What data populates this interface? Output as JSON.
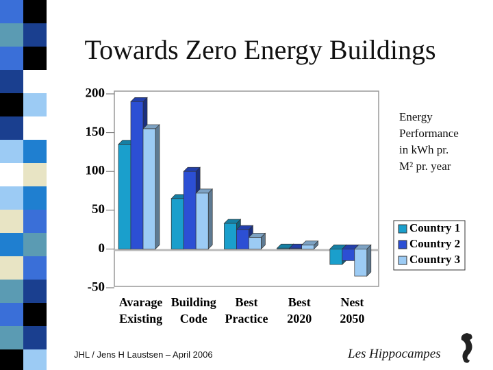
{
  "title": "Towards Zero Energy Buildings",
  "chart_data": {
    "type": "bar",
    "categories": [
      [
        "Avarage",
        "Existing"
      ],
      [
        "Building",
        "Code"
      ],
      [
        "Best",
        "Practice"
      ],
      [
        "Best",
        "2020"
      ],
      [
        "Nest",
        "2050"
      ]
    ],
    "series": [
      {
        "name": "Country 1",
        "color": "#1a9fcc",
        "values": [
          135,
          65,
          33,
          1,
          -20
        ]
      },
      {
        "name": "Country 2",
        "color": "#2c4fd4",
        "values": [
          190,
          100,
          25,
          1,
          -15
        ]
      },
      {
        "name": "Country 3",
        "color": "#9ccbf4",
        "values": [
          155,
          72,
          15,
          5,
          -35
        ]
      }
    ],
    "ylim": [
      -50,
      200
    ],
    "yticks": [
      -50,
      0,
      50,
      100,
      150,
      200
    ],
    "grid": false,
    "legend": "right",
    "annotation": [
      "Energy",
      "Performance",
      "in kWh pr.",
      "M² pr. year"
    ]
  },
  "footer": {
    "author": "JHL / Jens H Laustsen – April 2006",
    "brand": "Les Hippocampes"
  }
}
